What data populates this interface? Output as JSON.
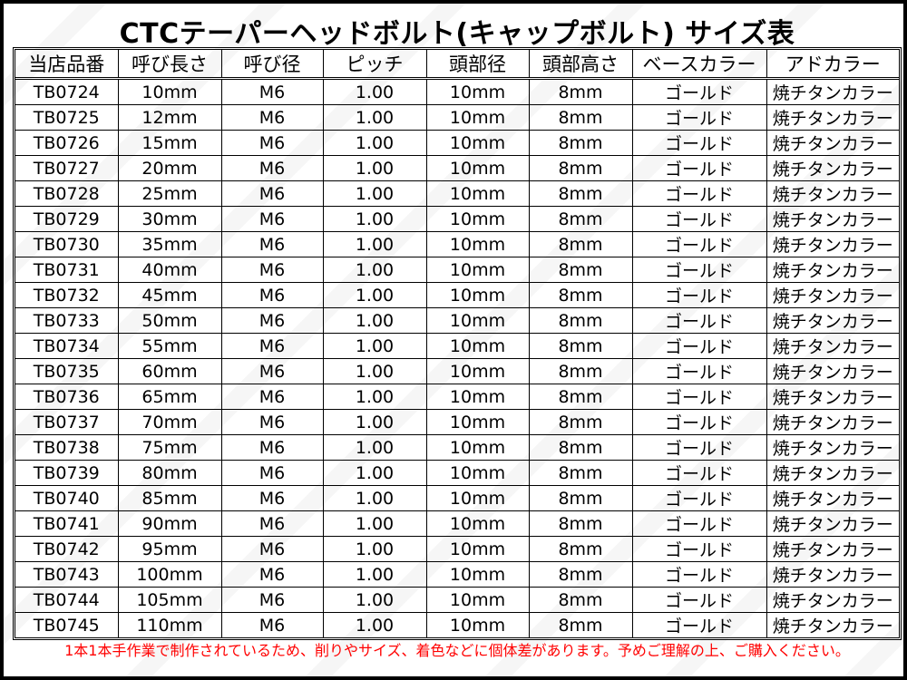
{
  "title": "CTCテーパーヘッドボルト(キャップボルト) サイズ表",
  "table": {
    "headers": [
      "当店品番",
      "呼び長さ",
      "呼び径",
      "ピッチ",
      "頭部径",
      "頭部高さ",
      "ベースカラー",
      "アドカラー"
    ],
    "rows": [
      [
        "TB0724",
        "10mm",
        "M6",
        "1.00",
        "10mm",
        "8mm",
        "ゴールド",
        "焼チタンカラー"
      ],
      [
        "TB0725",
        "12mm",
        "M6",
        "1.00",
        "10mm",
        "8mm",
        "ゴールド",
        "焼チタンカラー"
      ],
      [
        "TB0726",
        "15mm",
        "M6",
        "1.00",
        "10mm",
        "8mm",
        "ゴールド",
        "焼チタンカラー"
      ],
      [
        "TB0727",
        "20mm",
        "M6",
        "1.00",
        "10mm",
        "8mm",
        "ゴールド",
        "焼チタンカラー"
      ],
      [
        "TB0728",
        "25mm",
        "M6",
        "1.00",
        "10mm",
        "8mm",
        "ゴールド",
        "焼チタンカラー"
      ],
      [
        "TB0729",
        "30mm",
        "M6",
        "1.00",
        "10mm",
        "8mm",
        "ゴールド",
        "焼チタンカラー"
      ],
      [
        "TB0730",
        "35mm",
        "M6",
        "1.00",
        "10mm",
        "8mm",
        "ゴールド",
        "焼チタンカラー"
      ],
      [
        "TB0731",
        "40mm",
        "M6",
        "1.00",
        "10mm",
        "8mm",
        "ゴールド",
        "焼チタンカラー"
      ],
      [
        "TB0732",
        "45mm",
        "M6",
        "1.00",
        "10mm",
        "8mm",
        "ゴールド",
        "焼チタンカラー"
      ],
      [
        "TB0733",
        "50mm",
        "M6",
        "1.00",
        "10mm",
        "8mm",
        "ゴールド",
        "焼チタンカラー"
      ],
      [
        "TB0734",
        "55mm",
        "M6",
        "1.00",
        "10mm",
        "8mm",
        "ゴールド",
        "焼チタンカラー"
      ],
      [
        "TB0735",
        "60mm",
        "M6",
        "1.00",
        "10mm",
        "8mm",
        "ゴールド",
        "焼チタンカラー"
      ],
      [
        "TB0736",
        "65mm",
        "M6",
        "1.00",
        "10mm",
        "8mm",
        "ゴールド",
        "焼チタンカラー"
      ],
      [
        "TB0737",
        "70mm",
        "M6",
        "1.00",
        "10mm",
        "8mm",
        "ゴールド",
        "焼チタンカラー"
      ],
      [
        "TB0738",
        "75mm",
        "M6",
        "1.00",
        "10mm",
        "8mm",
        "ゴールド",
        "焼チタンカラー"
      ],
      [
        "TB0739",
        "80mm",
        "M6",
        "1.00",
        "10mm",
        "8mm",
        "ゴールド",
        "焼チタンカラー"
      ],
      [
        "TB0740",
        "85mm",
        "M6",
        "1.00",
        "10mm",
        "8mm",
        "ゴールド",
        "焼チタンカラー"
      ],
      [
        "TB0741",
        "90mm",
        "M6",
        "1.00",
        "10mm",
        "8mm",
        "ゴールド",
        "焼チタンカラー"
      ],
      [
        "TB0742",
        "95mm",
        "M6",
        "1.00",
        "10mm",
        "8mm",
        "ゴールド",
        "焼チタンカラー"
      ],
      [
        "TB0743",
        "100mm",
        "M6",
        "1.00",
        "10mm",
        "8mm",
        "ゴールド",
        "焼チタンカラー"
      ],
      [
        "TB0744",
        "105mm",
        "M6",
        "1.00",
        "10mm",
        "8mm",
        "ゴールド",
        "焼チタンカラー"
      ],
      [
        "TB0745",
        "110mm",
        "M6",
        "1.00",
        "10mm",
        "8mm",
        "ゴールド",
        "焼チタンカラー"
      ]
    ]
  },
  "note": "1本1本手作業で制作されているため、削りやサイズ、着色などに個体差があります。予めご理解の上、ご購入ください。",
  "colors": {
    "note": "#ff0000",
    "border": "#000000"
  }
}
